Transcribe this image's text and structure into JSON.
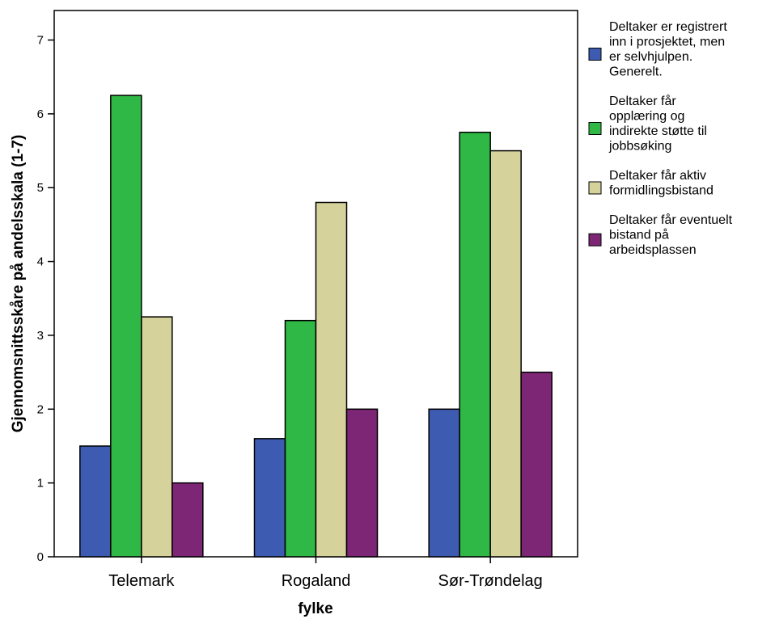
{
  "chart_data": {
    "type": "bar",
    "title": "",
    "xlabel": "fylke",
    "ylabel": "Gjennomsnittsskåre på andelsskala (1-7)",
    "ylim": [
      0,
      7.4
    ],
    "yticks": [
      0,
      1,
      2,
      3,
      4,
      5,
      6,
      7
    ],
    "grid": false,
    "legend_position": "right",
    "categories": [
      "Telemark",
      "Rogaland",
      "Sør-Trøndelag"
    ],
    "series": [
      {
        "name": "Deltaker er registrert inn i prosjektet, men er selvhjulpen. Generelt.",
        "legend_lines": [
          "Deltaker er registrert",
          "inn i prosjektet, men",
          "er selvhjulpen.",
          "Generelt."
        ],
        "color": "#3d5bb0",
        "values": [
          1.5,
          1.6,
          2.0
        ]
      },
      {
        "name": "Deltaker får opplæring og indirekte støtte til jobbsøking",
        "legend_lines": [
          "Deltaker får",
          "opplæring og",
          "indirekte støtte til",
          "jobbsøking"
        ],
        "color": "#2fb845",
        "values": [
          6.25,
          3.2,
          5.75
        ]
      },
      {
        "name": "Deltaker får aktiv formidlingsbistand",
        "legend_lines": [
          "Deltaker får aktiv",
          "formidlingsbistand"
        ],
        "color": "#d5d29b",
        "values": [
          3.25,
          4.8,
          5.5
        ]
      },
      {
        "name": "Deltaker får eventuelt bistand på arbeidsplassen",
        "legend_lines": [
          "Deltaker får eventuelt",
          "bistand på",
          "arbeidsplassen"
        ],
        "color": "#7d2676",
        "values": [
          1.0,
          2.0,
          2.5
        ]
      }
    ]
  }
}
